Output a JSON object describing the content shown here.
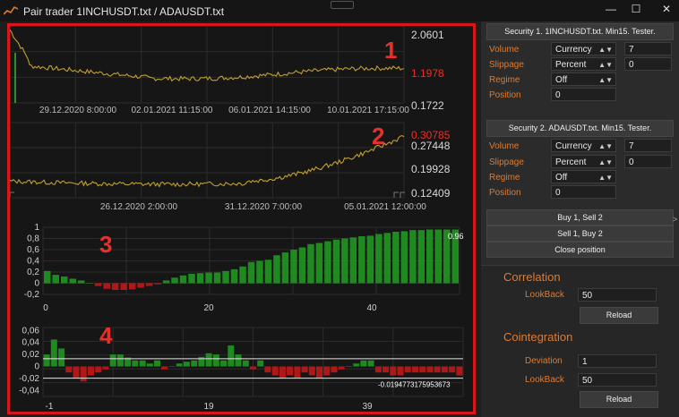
{
  "window": {
    "title": "Pair trader  1INCHUSDT.txt / ADAUSDT.txt",
    "minimize": "—",
    "maximize": "☐",
    "close": "✕"
  },
  "charts": {
    "labels": [
      "1",
      "2",
      "3",
      "4"
    ],
    "chart1": {
      "price_ticks": [
        "2.0601",
        "1.1978",
        "0.1722"
      ],
      "current_price": "1.1978",
      "time_labels": [
        "29.12.2020 8:00:00",
        "02.01.2021 11:15:00",
        "06.01.2021 14:15:00",
        "10.01.2021 17:15:00"
      ]
    },
    "chart2": {
      "price_ticks": [
        "0.30785",
        "0.27448",
        "0.19928",
        "0.12409"
      ],
      "current_price": "0.30785",
      "time_labels": [
        "26.12.2020 2:00:00",
        "31.12.2020 7:00:00",
        "05.01.2021 12:00:00"
      ]
    },
    "chart3": {
      "y_ticks": [
        "1",
        "0,8",
        "0,6",
        "0,4",
        "0,2",
        "0",
        "-0,2"
      ],
      "x_ticks": [
        "0",
        "20",
        "40"
      ],
      "last_value_label": "0.96",
      "values": [
        0.22,
        0.15,
        0.12,
        0.08,
        0.05,
        0.0,
        -0.05,
        -0.1,
        -0.12,
        -0.12,
        -0.11,
        -0.08,
        -0.05,
        -0.02,
        0.05,
        0.1,
        0.14,
        0.17,
        0.18,
        0.19,
        0.19,
        0.22,
        0.25,
        0.3,
        0.38,
        0.4,
        0.42,
        0.5,
        0.55,
        0.6,
        0.64,
        0.7,
        0.72,
        0.75,
        0.78,
        0.8,
        0.82,
        0.84,
        0.85,
        0.88,
        0.9,
        0.92,
        0.93,
        0.95,
        0.95,
        0.96,
        0.96,
        0.96,
        0.96
      ]
    },
    "chart4": {
      "y_ticks": [
        "0,06",
        "0,04",
        "0,02",
        "0",
        "-0,02",
        "-0,04"
      ],
      "x_ticks": [
        "-1",
        "19",
        "39"
      ],
      "lower_line_label": "-0.0194773175953673",
      "upper_line": 0.013,
      "lower_line": -0.0195,
      "values": [
        0.02,
        0.045,
        0.03,
        -0.01,
        -0.02,
        -0.025,
        -0.015,
        -0.01,
        -0.005,
        0.02,
        0.02,
        0.015,
        0.01,
        0.01,
        0.005,
        0.01,
        -0.005,
        0.0,
        0.005,
        0.008,
        0.01,
        0.016,
        0.022,
        0.02,
        0.01,
        0.035,
        0.02,
        0.01,
        -0.005,
        0.01,
        -0.01,
        -0.015,
        -0.02,
        -0.015,
        -0.02,
        -0.01,
        -0.015,
        -0.02,
        -0.015,
        -0.01,
        -0.005,
        0.0,
        0.005,
        0.01,
        0.01,
        -0.01,
        -0.01,
        -0.015,
        -0.015,
        -0.01,
        -0.01,
        -0.01,
        -0.01,
        -0.01,
        -0.01,
        -0.01,
        -0.015
      ]
    }
  },
  "security1": {
    "header": "Security 1. 1INCHUSDT.txt. Min15. Tester.",
    "volume_label": "Volume",
    "volume_type": "Currency",
    "volume_value": "7",
    "slippage_label": "Slippage",
    "slippage_type": "Percent",
    "slippage_value": "0",
    "regime_label": "Regime",
    "regime_value": "Off",
    "position_label": "Position",
    "position_value": "0"
  },
  "security2": {
    "header": "Security 2. ADAUSDT.txt. Min15. Tester.",
    "volume_label": "Volume",
    "volume_type": "Currency",
    "volume_value": "7",
    "slippage_label": "Slippage",
    "slippage_type": "Percent",
    "slippage_value": "0",
    "regime_label": "Regime",
    "regime_value": "Off",
    "position_label": "Position",
    "position_value": "0"
  },
  "actions": {
    "buy1_sell2": "Buy 1, Sell 2",
    "sell1_buy2": "Sell 1, Buy 2",
    "close_position": "Close position"
  },
  "correlation": {
    "title": "Correlation",
    "lookback_label": "LookBack",
    "lookback_value": "50",
    "reload": "Reload"
  },
  "cointegration": {
    "title": "Cointegration",
    "deviation_label": "Deviation",
    "deviation_value": "1",
    "lookback_label": "LookBack",
    "lookback_value": "50",
    "reload": "Reload"
  },
  "colors": {
    "accent": "#e07a2e",
    "annotation": "#e8302a",
    "positive_bar": "#1f8a1f",
    "negative_bar": "#b01818",
    "price_line": "#d99a2a",
    "price_line_alt": "#7fb03a"
  }
}
